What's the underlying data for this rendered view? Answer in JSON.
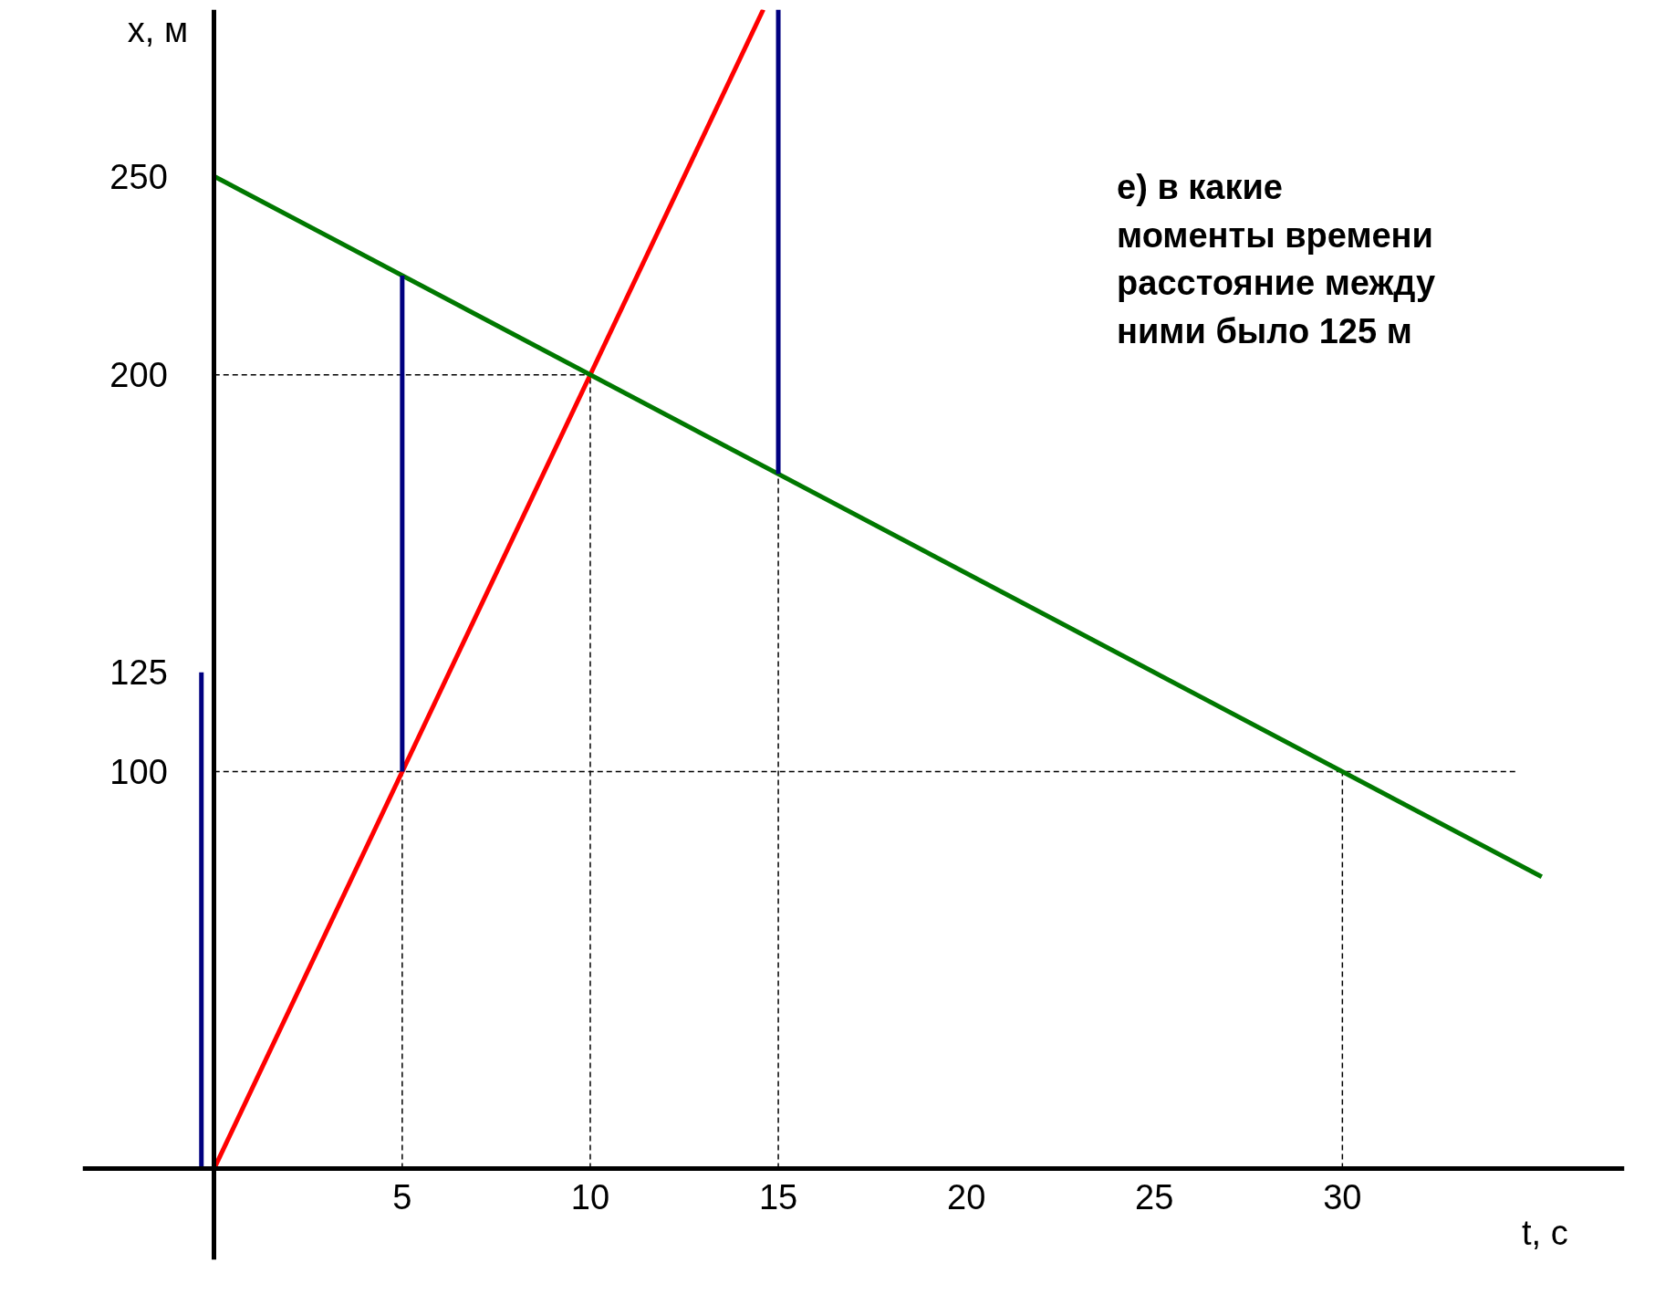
{
  "chart_data": {
    "type": "line",
    "xlabel": "t, с",
    "ylabel": "x, м",
    "annotations": [
      "е) в какие\nмоменты времени\nрасстояние между\nними было 125 м"
    ],
    "xlim": [
      -3.5,
      37.5
    ],
    "ylim": [
      -23,
      292
    ],
    "xticks": [
      5,
      10,
      15,
      20,
      25,
      30
    ],
    "yticks": [
      100,
      125,
      200,
      250
    ],
    "grid": false,
    "marker": "none",
    "series": [
      {
        "color": "#000000",
        "line_style": "dashed",
        "x": [
          0,
          10
        ],
        "values": [
          200,
          200
        ]
      },
      {
        "color": "#000000",
        "line_style": "dashed",
        "x": [
          0,
          34.6
        ],
        "values": [
          100,
          100
        ]
      },
      {
        "color": "#000000",
        "line_style": "dashed",
        "x": [
          5,
          5
        ],
        "values": [
          0,
          100
        ]
      },
      {
        "color": "#000000",
        "line_style": "dashed",
        "x": [
          10,
          10
        ],
        "values": [
          0,
          200
        ]
      },
      {
        "color": "#000000",
        "line_style": "dashed",
        "x": [
          15,
          15
        ],
        "values": [
          0,
          175
        ]
      },
      {
        "color": "#000000",
        "line_style": "dashed",
        "x": [
          30,
          30
        ],
        "values": [
          0,
          100
        ]
      },
      {
        "color": "#ff0000",
        "line_style": "solid",
        "x": [
          0,
          14.6
        ],
        "values": [
          0,
          292
        ]
      },
      {
        "color": "#007800",
        "line_style": "solid",
        "x": [
          0,
          35.3
        ],
        "values": [
          250,
          73.5
        ]
      },
      {
        "color": "#000080",
        "line_style": "solid",
        "x": [
          5,
          5
        ],
        "values": [
          100,
          225
        ]
      },
      {
        "color": "#000080",
        "line_style": "solid",
        "x": [
          15,
          15
        ],
        "values": [
          175,
          292
        ]
      },
      {
        "color": "#000080",
        "line_style": "solid",
        "x": [
          -0.34,
          -0.34
        ],
        "values": [
          0,
          125
        ]
      }
    ]
  }
}
